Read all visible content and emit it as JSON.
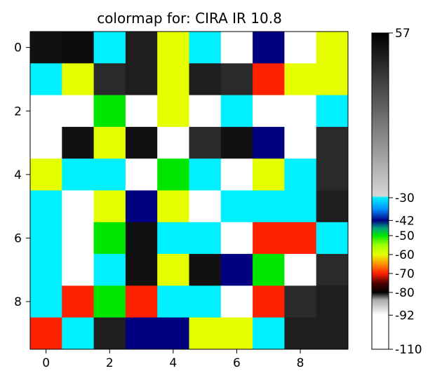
{
  "chart_data": {
    "type": "heatmap",
    "title": "colormap for: CIRA IR 10.8",
    "x_ticks": [
      "0",
      "2",
      "4",
      "6",
      "8"
    ],
    "y_ticks": [
      "0",
      "2",
      "4",
      "6",
      "8"
    ],
    "values": [
      [
        50,
        52,
        -30,
        45,
        -60,
        -30,
        -110,
        -42,
        -110,
        -60
      ],
      [
        -30,
        -60,
        40,
        45,
        -60,
        45,
        40,
        -70,
        -60,
        -60
      ],
      [
        -110,
        -110,
        -50,
        -110,
        -60,
        -110,
        -30,
        -110,
        -110,
        -30
      ],
      [
        -110,
        50,
        -60,
        50,
        -110,
        40,
        50,
        -42,
        -110,
        40
      ],
      [
        -60,
        -30,
        -30,
        -110,
        -50,
        -30,
        -110,
        -60,
        -30,
        40
      ],
      [
        -30,
        -110,
        -60,
        -42,
        -60,
        -110,
        -30,
        -30,
        -30,
        45
      ],
      [
        -30,
        -110,
        -50,
        50,
        -30,
        -30,
        -110,
        -70,
        -70,
        -30
      ],
      [
        -30,
        -110,
        -30,
        50,
        -60,
        50,
        -42,
        -50,
        -110,
        40
      ],
      [
        -30,
        -70,
        -50,
        -70,
        -30,
        -30,
        -110,
        -70,
        40,
        45
      ],
      [
        -70,
        -30,
        45,
        -42,
        -42,
        -60,
        -60,
        -30,
        45,
        45
      ]
    ],
    "colorbar": {
      "min": -110,
      "max": 57,
      "ticks": [
        "57",
        "-30",
        "-42",
        "-50",
        "-60",
        "-70",
        "-80",
        "-92",
        "-110"
      ],
      "stops": [
        {
          "v": -110,
          "c": "#ffffff"
        },
        {
          "v": -92,
          "c": "#ffffff"
        },
        {
          "v": -84,
          "c": "#aaaaaa"
        },
        {
          "v": -80,
          "c": "#000000"
        },
        {
          "v": -75,
          "c": "#500000"
        },
        {
          "v": -70,
          "c": "#ff2000"
        },
        {
          "v": -65,
          "c": "#ff9000"
        },
        {
          "v": -60,
          "c": "#e6ff00"
        },
        {
          "v": -55,
          "c": "#9fff00"
        },
        {
          "v": -50,
          "c": "#00e600"
        },
        {
          "v": -46,
          "c": "#00a080"
        },
        {
          "v": -42,
          "c": "#000080"
        },
        {
          "v": -36,
          "c": "#0090ff"
        },
        {
          "v": -30,
          "c": "#00f0ff"
        },
        {
          "v": -29,
          "c": "#d6d6d6"
        },
        {
          "v": 57,
          "c": "#000000"
        }
      ]
    }
  }
}
